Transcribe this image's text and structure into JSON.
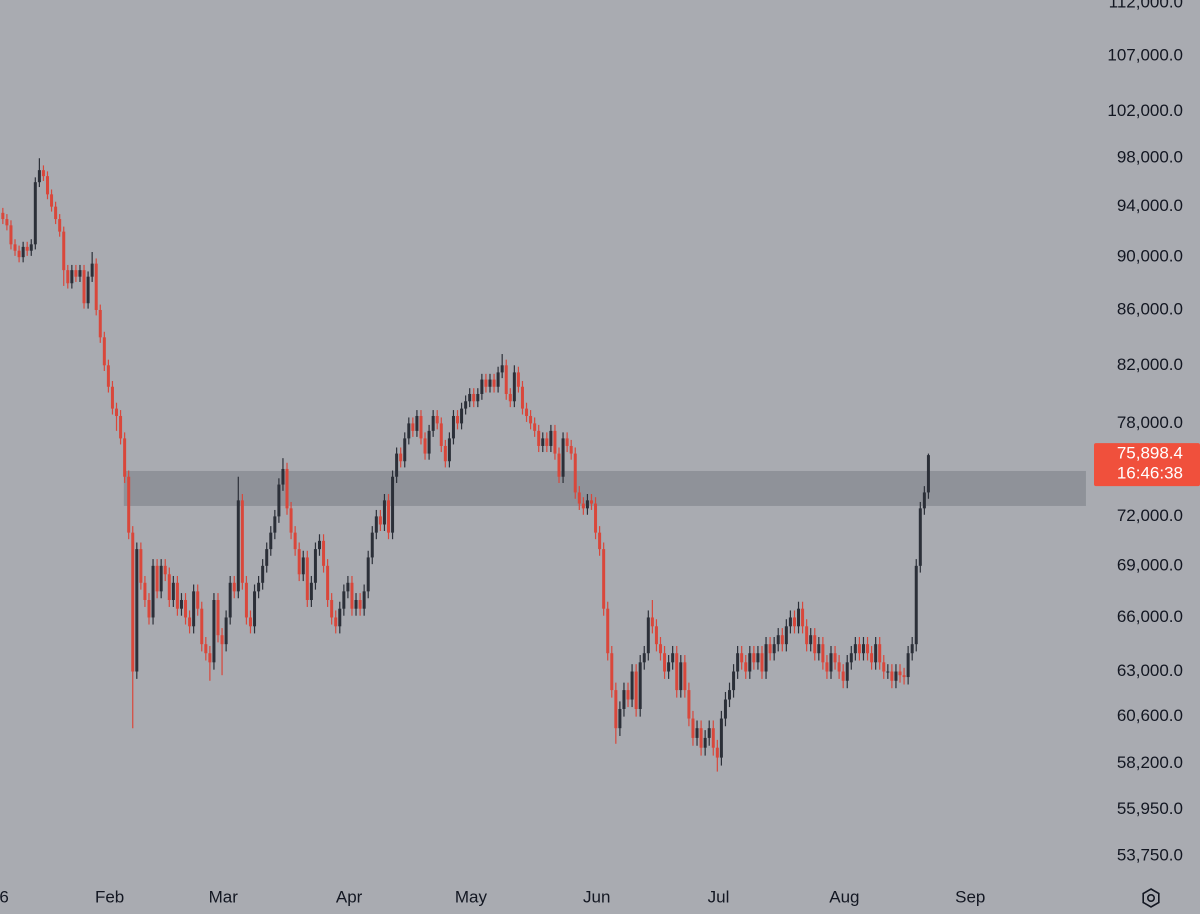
{
  "chart_data": {
    "type": "candlestick",
    "background": "#a9abb1",
    "up_color": "#2b2f38",
    "down_color": "#d9473b",
    "log_scale": true,
    "ylim": [
      52650,
      112300
    ],
    "yticks": [
      {
        "value": 112000,
        "label": "112,000.0"
      },
      {
        "value": 107000,
        "label": "107,000.0"
      },
      {
        "value": 102000,
        "label": "102,000.0"
      },
      {
        "value": 98000,
        "label": "98,000.0"
      },
      {
        "value": 94000,
        "label": "94,000.0"
      },
      {
        "value": 90000,
        "label": "90,000.0"
      },
      {
        "value": 86000,
        "label": "86,000.0"
      },
      {
        "value": 82000,
        "label": "82,000.0"
      },
      {
        "value": 78000,
        "label": "78,000.0"
      },
      {
        "value": 72000,
        "label": "72,000.0"
      },
      {
        "value": 69000,
        "label": "69,000.0"
      },
      {
        "value": 66000,
        "label": "66,000.0"
      },
      {
        "value": 63000,
        "label": "63,000.0"
      },
      {
        "value": 60600,
        "label": "60,600.0"
      },
      {
        "value": 58200,
        "label": "58,200.0"
      },
      {
        "value": 55950,
        "label": "55,950.0"
      },
      {
        "value": 53750,
        "label": "53,750.0"
      }
    ],
    "xlim": [
      0,
      268.5
    ],
    "xticks": [
      {
        "value": 1,
        "label": "6"
      },
      {
        "value": 27,
        "label": "Feb"
      },
      {
        "value": 55,
        "label": "Mar"
      },
      {
        "value": 86,
        "label": "Apr"
      },
      {
        "value": 116,
        "label": "May"
      },
      {
        "value": 147,
        "label": "Jun"
      },
      {
        "value": 177,
        "label": "Jul"
      },
      {
        "value": 208,
        "label": "Aug"
      },
      {
        "value": 239,
        "label": "Sep"
      }
    ],
    "zone": {
      "color": "#8f9299",
      "x": [
        30.5,
        267.5
      ],
      "y": [
        72650,
        74870
      ]
    },
    "last_price": {
      "value": 75898.4,
      "label": "75,898.4",
      "countdown": "16:46:38",
      "color": "#f0503c"
    },
    "candles": [
      [
        93500,
        93900,
        92600,
        93000
      ],
      [
        93000,
        93400,
        92100,
        92500
      ],
      [
        92500,
        92900,
        90600,
        91000
      ],
      [
        91000,
        91400,
        90100,
        90500
      ],
      [
        90500,
        90900,
        89600,
        90000
      ],
      [
        90000,
        91200,
        89600,
        90800
      ],
      [
        90800,
        91200,
        90100,
        90500
      ],
      [
        90500,
        91400,
        90100,
        91000
      ],
      [
        91000,
        96400,
        90600,
        96000
      ],
      [
        96000,
        98000,
        95600,
        97000
      ],
      [
        97000,
        97400,
        96100,
        96500
      ],
      [
        96500,
        96900,
        94600,
        95000
      ],
      [
        95000,
        95400,
        93600,
        94000
      ],
      [
        94000,
        94400,
        92600,
        93000
      ],
      [
        93000,
        93400,
        91600,
        92000
      ],
      [
        92000,
        92400,
        87800,
        89000
      ],
      [
        89000,
        89400,
        87600,
        88000
      ],
      [
        88000,
        89400,
        87600,
        89000
      ],
      [
        89000,
        89400,
        88100,
        88500
      ],
      [
        88500,
        89400,
        88100,
        89000
      ],
      [
        89000,
        89400,
        86100,
        86500
      ],
      [
        86500,
        88900,
        86100,
        88500
      ],
      [
        88500,
        90400,
        88100,
        89500
      ],
      [
        89500,
        89900,
        85600,
        86000
      ],
      [
        86000,
        86400,
        83600,
        84000
      ],
      [
        84000,
        84400,
        81600,
        82000
      ],
      [
        82000,
        82400,
        80100,
        80500
      ],
      [
        80500,
        80900,
        78600,
        79000
      ],
      [
        79000,
        79400,
        77500,
        78500
      ],
      [
        78500,
        78900,
        76600,
        77000
      ],
      [
        77000,
        77400,
        74100,
        74500
      ],
      [
        74500,
        74900,
        70600,
        71000
      ],
      [
        71000,
        71400,
        60000,
        63000
      ],
      [
        63000,
        70400,
        62600,
        70000
      ],
      [
        70000,
        70400,
        67600,
        68000
      ],
      [
        68000,
        68400,
        66600,
        67000
      ],
      [
        67000,
        67400,
        65600,
        66000
      ],
      [
        66000,
        69400,
        65600,
        69000
      ],
      [
        69000,
        69400,
        67100,
        67500
      ],
      [
        67500,
        69400,
        67100,
        69000
      ],
      [
        69000,
        69400,
        68100,
        68500
      ],
      [
        68500,
        68900,
        66600,
        67000
      ],
      [
        67000,
        68400,
        66600,
        68000
      ],
      [
        68000,
        68400,
        66100,
        66500
      ],
      [
        66500,
        67400,
        66100,
        67000
      ],
      [
        67000,
        67400,
        65600,
        66000
      ],
      [
        66000,
        66400,
        65100,
        65500
      ],
      [
        65500,
        67900,
        65100,
        67500
      ],
      [
        67500,
        67900,
        66100,
        66500
      ],
      [
        66500,
        66900,
        64100,
        64500
      ],
      [
        64500,
        64900,
        63600,
        64000
      ],
      [
        64000,
        64400,
        62500,
        63500
      ],
      [
        63500,
        67400,
        63100,
        67000
      ],
      [
        67000,
        67400,
        64600,
        65000
      ],
      [
        65000,
        65400,
        62800,
        64500
      ],
      [
        64500,
        66400,
        64100,
        66000
      ],
      [
        66000,
        68400,
        65600,
        68000
      ],
      [
        68000,
        68400,
        67100,
        67500
      ],
      [
        67500,
        74500,
        67100,
        73000
      ],
      [
        73000,
        73400,
        67600,
        68000
      ],
      [
        68000,
        68400,
        65600,
        66000
      ],
      [
        66000,
        66400,
        65100,
        65500
      ],
      [
        65500,
        67900,
        65100,
        67500
      ],
      [
        67500,
        68400,
        67100,
        68000
      ],
      [
        68000,
        69400,
        67600,
        69000
      ],
      [
        69000,
        70400,
        68600,
        70000
      ],
      [
        70000,
        71400,
        69600,
        71000
      ],
      [
        71000,
        72400,
        70600,
        72000
      ],
      [
        72000,
        74400,
        71600,
        74000
      ],
      [
        74000,
        75700,
        73600,
        75000
      ],
      [
        75000,
        75400,
        72100,
        72500
      ],
      [
        72500,
        72900,
        70600,
        71000
      ],
      [
        71000,
        71400,
        69600,
        70000
      ],
      [
        70000,
        70400,
        68100,
        68500
      ],
      [
        68500,
        69900,
        68100,
        69500
      ],
      [
        69500,
        69900,
        66600,
        67000
      ],
      [
        67000,
        68400,
        66600,
        68000
      ],
      [
        68000,
        70400,
        67600,
        70000
      ],
      [
        70000,
        70900,
        69600,
        70500
      ],
      [
        70500,
        70900,
        68600,
        69000
      ],
      [
        69000,
        69400,
        66600,
        67000
      ],
      [
        67000,
        67400,
        65600,
        66000
      ],
      [
        66000,
        66400,
        65100,
        65500
      ],
      [
        65500,
        66900,
        65100,
        66500
      ],
      [
        66500,
        67900,
        66100,
        67500
      ],
      [
        67500,
        68400,
        67100,
        68000
      ],
      [
        68000,
        68400,
        66100,
        66500
      ],
      [
        66500,
        67400,
        66100,
        67000
      ],
      [
        67000,
        67400,
        66100,
        66500
      ],
      [
        66500,
        67900,
        66100,
        67500
      ],
      [
        67500,
        69900,
        67100,
        69500
      ],
      [
        69500,
        71400,
        69100,
        71000
      ],
      [
        71000,
        72400,
        70600,
        72000
      ],
      [
        72000,
        72400,
        71100,
        71500
      ],
      [
        71500,
        73400,
        71100,
        73000
      ],
      [
        73000,
        73400,
        70600,
        71000
      ],
      [
        71000,
        74900,
        70600,
        74500
      ],
      [
        74500,
        76400,
        74100,
        76000
      ],
      [
        76000,
        76400,
        75100,
        75500
      ],
      [
        75500,
        77400,
        75100,
        77000
      ],
      [
        77000,
        78400,
        76600,
        78000
      ],
      [
        78000,
        78400,
        77100,
        77500
      ],
      [
        77500,
        78900,
        77100,
        78500
      ],
      [
        78500,
        78900,
        76600,
        77000
      ],
      [
        77000,
        77400,
        75600,
        76000
      ],
      [
        76000,
        77900,
        75600,
        77500
      ],
      [
        77500,
        78900,
        77100,
        78500
      ],
      [
        78500,
        78900,
        77600,
        78000
      ],
      [
        78000,
        78400,
        76100,
        76500
      ],
      [
        76500,
        76900,
        75100,
        75500
      ],
      [
        75500,
        77400,
        75100,
        77000
      ],
      [
        77000,
        78900,
        76600,
        78500
      ],
      [
        78500,
        78900,
        77600,
        78000
      ],
      [
        78000,
        79400,
        77600,
        79000
      ],
      [
        79000,
        79900,
        78600,
        79500
      ],
      [
        79500,
        80400,
        79100,
        80000
      ],
      [
        80000,
        80400,
        79100,
        79500
      ],
      [
        79500,
        80400,
        79100,
        80000
      ],
      [
        80000,
        81400,
        79600,
        81000
      ],
      [
        81000,
        81400,
        80100,
        80500
      ],
      [
        80500,
        81400,
        80100,
        81000
      ],
      [
        81000,
        81400,
        80100,
        80500
      ],
      [
        80500,
        81900,
        80100,
        81500
      ],
      [
        81500,
        82800,
        81100,
        82000
      ],
      [
        82000,
        82400,
        79600,
        80000
      ],
      [
        80000,
        80400,
        79100,
        79500
      ],
      [
        79500,
        82000,
        79100,
        81500
      ],
      [
        81500,
        81900,
        80100,
        80500
      ],
      [
        80500,
        80900,
        78600,
        79000
      ],
      [
        79000,
        79400,
        78100,
        78500
      ],
      [
        78500,
        78900,
        77600,
        78000
      ],
      [
        78000,
        78400,
        77100,
        77500
      ],
      [
        77500,
        77900,
        76100,
        76500
      ],
      [
        76500,
        77400,
        76100,
        77000
      ],
      [
        77000,
        77400,
        76100,
        76500
      ],
      [
        76500,
        77900,
        76100,
        77500
      ],
      [
        77500,
        77900,
        75600,
        76000
      ],
      [
        76000,
        76400,
        74100,
        74500
      ],
      [
        74500,
        77400,
        74100,
        77000
      ],
      [
        77000,
        77400,
        76100,
        76500
      ],
      [
        76500,
        76900,
        75600,
        76000
      ],
      [
        76000,
        76400,
        73100,
        73500
      ],
      [
        73500,
        73900,
        72400,
        72800
      ],
      [
        72800,
        73200,
        72100,
        72500
      ],
      [
        72500,
        73400,
        72100,
        73000
      ],
      [
        73000,
        73400,
        72400,
        72800
      ],
      [
        72800,
        73200,
        70600,
        71000
      ],
      [
        71000,
        71400,
        69600,
        70000
      ],
      [
        70000,
        70400,
        66100,
        66500
      ],
      [
        66500,
        66900,
        63600,
        64000
      ],
      [
        64000,
        64400,
        61600,
        62000
      ],
      [
        62000,
        62400,
        59200,
        60000
      ],
      [
        60000,
        61400,
        59600,
        61000
      ],
      [
        61000,
        62400,
        60600,
        62000
      ],
      [
        62000,
        62400,
        61100,
        61500
      ],
      [
        61500,
        63400,
        61100,
        63000
      ],
      [
        63000,
        63400,
        60600,
        61000
      ],
      [
        61000,
        63900,
        60600,
        63500
      ],
      [
        63500,
        64400,
        63100,
        64000
      ],
      [
        64000,
        66400,
        63600,
        66000
      ],
      [
        66000,
        67000,
        65100,
        65500
      ],
      [
        65500,
        65900,
        64100,
        64500
      ],
      [
        64500,
        64900,
        63600,
        64000
      ],
      [
        64000,
        64400,
        62600,
        63000
      ],
      [
        63000,
        63900,
        62600,
        63500
      ],
      [
        63500,
        64400,
        63100,
        64000
      ],
      [
        64000,
        64400,
        61600,
        62000
      ],
      [
        62000,
        63900,
        61600,
        63500
      ],
      [
        63500,
        63900,
        61600,
        62000
      ],
      [
        62000,
        62400,
        60100,
        60500
      ],
      [
        60500,
        60900,
        59100,
        59500
      ],
      [
        59500,
        60400,
        59100,
        60000
      ],
      [
        60000,
        60400,
        58600,
        59000
      ],
      [
        59000,
        59900,
        58600,
        59500
      ],
      [
        59500,
        60400,
        59100,
        60000
      ],
      [
        60000,
        60400,
        58600,
        59000
      ],
      [
        59000,
        59400,
        57800,
        58500
      ],
      [
        58500,
        60900,
        58100,
        60500
      ],
      [
        60500,
        61900,
        60100,
        61500
      ],
      [
        61500,
        62400,
        61100,
        62000
      ],
      [
        62000,
        63400,
        61600,
        63000
      ],
      [
        63000,
        64400,
        62600,
        64000
      ],
      [
        64000,
        64400,
        63100,
        63500
      ],
      [
        63500,
        63900,
        62600,
        63000
      ],
      [
        63000,
        64400,
        62600,
        64000
      ],
      [
        64000,
        64400,
        63100,
        63500
      ],
      [
        63500,
        64400,
        63100,
        64000
      ],
      [
        64000,
        64400,
        62600,
        63000
      ],
      [
        63000,
        64900,
        62600,
        64500
      ],
      [
        64500,
        64900,
        63600,
        64000
      ],
      [
        64000,
        64900,
        63600,
        64500
      ],
      [
        64500,
        65400,
        64100,
        65000
      ],
      [
        65000,
        65400,
        64100,
        64500
      ],
      [
        64500,
        65900,
        64100,
        65500
      ],
      [
        65500,
        66400,
        65100,
        66000
      ],
      [
        66000,
        66400,
        65100,
        65500
      ],
      [
        65500,
        66900,
        65100,
        66500
      ],
      [
        66500,
        66900,
        65100,
        65500
      ],
      [
        65500,
        65900,
        64100,
        64500
      ],
      [
        64500,
        65400,
        64100,
        65000
      ],
      [
        65000,
        65400,
        63600,
        64000
      ],
      [
        64000,
        64900,
        63600,
        64500
      ],
      [
        64500,
        64900,
        63100,
        63500
      ],
      [
        63500,
        63900,
        62600,
        63000
      ],
      [
        63000,
        64400,
        62600,
        64000
      ],
      [
        64000,
        64400,
        63100,
        63500
      ],
      [
        63500,
        63900,
        62600,
        63000
      ],
      [
        63000,
        63400,
        62100,
        62500
      ],
      [
        62500,
        63900,
        62100,
        63500
      ],
      [
        63500,
        64400,
        63100,
        64000
      ],
      [
        64000,
        64900,
        63600,
        64500
      ],
      [
        64500,
        64900,
        63600,
        64000
      ],
      [
        64000,
        64900,
        63600,
        64500
      ],
      [
        64500,
        64900,
        63600,
        64000
      ],
      [
        64000,
        64400,
        63100,
        63500
      ],
      [
        63500,
        64900,
        63100,
        64500
      ],
      [
        64500,
        64900,
        63100,
        63500
      ],
      [
        63500,
        63900,
        62600,
        63000
      ],
      [
        63000,
        63400,
        62600,
        63000
      ],
      [
        63000,
        63400,
        62100,
        62500
      ],
      [
        62500,
        63400,
        62100,
        63000
      ],
      [
        63000,
        63400,
        62400,
        62800
      ],
      [
        62800,
        63200,
        62300,
        62700
      ],
      [
        62700,
        64400,
        62300,
        64000
      ],
      [
        64000,
        64900,
        63600,
        64500
      ],
      [
        64500,
        69400,
        64100,
        69000
      ],
      [
        69000,
        72900,
        68600,
        72500
      ],
      [
        72500,
        73900,
        72100,
        73500
      ],
      [
        73500,
        76000,
        73100,
        75898.4
      ]
    ]
  }
}
